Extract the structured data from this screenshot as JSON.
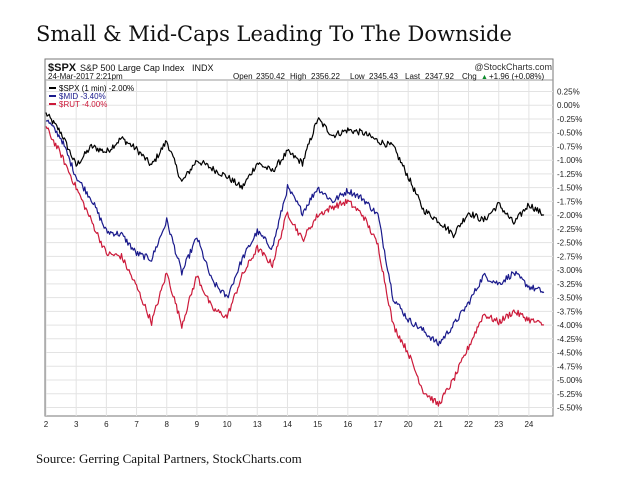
{
  "page": {
    "title": "Small & Mid-Caps Leading To The Downside",
    "source": "Source: Gerring Capital Partners, StockCharts.com"
  },
  "chart_header": {
    "symbol": "$SPX",
    "name": "S&P 500 Large Cap Index",
    "exchange": "INDX",
    "watermark": "@StockCharts.com",
    "timestamp": "24-Mar-2017 2:21pm",
    "open_label": "Open",
    "open": "2350.42",
    "high_label": "High",
    "high": "2356.22",
    "low_label": "Low",
    "low": "2345.43",
    "last_label": "Last",
    "last": "2347.92",
    "chg_label": "Chg",
    "chg": "+1.96 (+0.08%)",
    "chg_arrow": "▲"
  },
  "legend": [
    {
      "label": "$SPX (1 min) -2.00%",
      "color": "#000000"
    },
    {
      "label": "$MID -3.40%",
      "color": "#1a1a8c"
    },
    {
      "label": "$RUT -4.00%",
      "color": "#cc1a3a"
    }
  ],
  "chart_data": {
    "type": "line",
    "x_ticks": [
      "2",
      "3",
      "6",
      "7",
      "8",
      "9",
      "10",
      "13",
      "14",
      "15",
      "16",
      "17",
      "20",
      "21",
      "22",
      "23",
      "24"
    ],
    "y_ticks": [
      "0.25%",
      "0.00%",
      "-0.25%",
      "-0.50%",
      "-0.75%",
      "-1.00%",
      "-1.25%",
      "-1.50%",
      "-1.75%",
      "-2.00%",
      "-2.25%",
      "-2.50%",
      "-2.75%",
      "-3.00%",
      "-3.25%",
      "-3.50%",
      "-3.75%",
      "-4.00%",
      "-4.25%",
      "-4.50%",
      "-4.75%",
      "-5.00%",
      "-5.25%",
      "-5.50%"
    ],
    "ylim": [
      -5.6,
      0.35
    ],
    "grid": true,
    "series": [
      {
        "name": "$SPX (1 min) -2.00%",
        "color": "#000000",
        "x": [
          0,
          0.5,
          1.0,
          1.5,
          2.0,
          2.5,
          3.0,
          3.5,
          4.0,
          4.5,
          5.0,
          5.5,
          6.0,
          6.5,
          7.0,
          7.5,
          8.0,
          8.5,
          9.0,
          9.5,
          10.0,
          10.5,
          11.0,
          11.5,
          12.0,
          12.5,
          13.0,
          13.5,
          14.0,
          14.5,
          15.0,
          15.5,
          16.0,
          16.5
        ],
        "values": [
          -0.15,
          -0.5,
          -1.1,
          -0.75,
          -0.85,
          -0.6,
          -0.8,
          -1.1,
          -0.65,
          -1.4,
          -1.0,
          -1.15,
          -1.3,
          -1.5,
          -1.05,
          -1.2,
          -0.85,
          -1.05,
          -0.25,
          -0.55,
          -0.45,
          -0.5,
          -0.65,
          -0.75,
          -1.3,
          -1.9,
          -2.1,
          -2.35,
          -1.95,
          -2.1,
          -1.8,
          -2.15,
          -1.8,
          -2.0
        ]
      },
      {
        "name": "$MID -3.40%",
        "color": "#1a1a8c",
        "x": [
          0,
          0.5,
          1.0,
          1.5,
          2.0,
          2.5,
          3.0,
          3.5,
          4.0,
          4.5,
          5.0,
          5.5,
          6.0,
          6.5,
          7.0,
          7.5,
          8.0,
          8.5,
          9.0,
          9.5,
          10.0,
          10.5,
          11.0,
          11.5,
          12.0,
          12.5,
          13.0,
          13.5,
          14.0,
          14.5,
          15.0,
          15.5,
          16.0,
          16.5
        ],
        "values": [
          -0.25,
          -0.6,
          -1.3,
          -1.7,
          -2.3,
          -2.35,
          -2.7,
          -2.8,
          -2.1,
          -3.05,
          -2.4,
          -3.2,
          -3.5,
          -2.8,
          -2.3,
          -2.6,
          -1.5,
          -1.95,
          -1.5,
          -1.75,
          -1.55,
          -1.7,
          -2.0,
          -3.5,
          -3.9,
          -4.1,
          -4.35,
          -4.0,
          -3.6,
          -3.1,
          -3.25,
          -3.05,
          -3.3,
          -3.4
        ]
      },
      {
        "name": "$RUT -4.00%",
        "color": "#cc1a3a",
        "x": [
          0,
          0.5,
          1.0,
          1.5,
          2.0,
          2.5,
          3.0,
          3.5,
          4.0,
          4.5,
          5.0,
          5.5,
          6.0,
          6.5,
          7.0,
          7.5,
          8.0,
          8.5,
          9.0,
          9.5,
          10.0,
          10.5,
          11.0,
          11.5,
          12.0,
          12.5,
          13.0,
          13.5,
          14.0,
          14.5,
          15.0,
          15.5,
          16.0,
          16.5
        ],
        "values": [
          -0.4,
          -0.9,
          -1.5,
          -2.1,
          -2.7,
          -2.75,
          -3.3,
          -3.95,
          -3.05,
          -4.0,
          -3.1,
          -3.7,
          -3.85,
          -3.1,
          -2.6,
          -2.9,
          -1.95,
          -2.45,
          -2.0,
          -1.85,
          -1.75,
          -2.0,
          -2.55,
          -4.0,
          -4.5,
          -5.2,
          -5.45,
          -5.0,
          -4.4,
          -3.8,
          -3.95,
          -3.75,
          -3.9,
          -4.0
        ]
      }
    ]
  }
}
